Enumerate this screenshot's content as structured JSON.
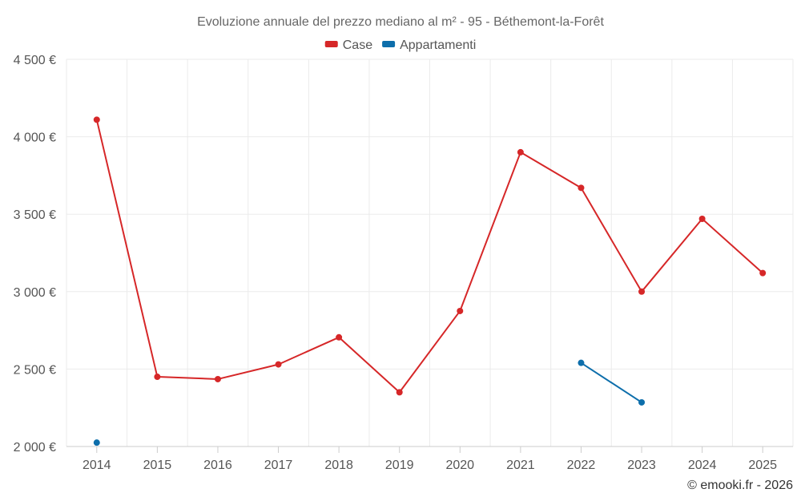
{
  "chart_data": {
    "type": "line",
    "title": "Evoluzione annuale del prezzo mediano al m² - 95 - Béthemont-la-Forêt",
    "categories": [
      "2014",
      "2015",
      "2016",
      "2017",
      "2018",
      "2019",
      "2020",
      "2021",
      "2022",
      "2023",
      "2024",
      "2025"
    ],
    "ylim": [
      2000,
      4500
    ],
    "yticks": [
      2000,
      2500,
      3000,
      3500,
      4000,
      4500
    ],
    "ytick_labels": [
      "2 000 €",
      "2 500 €",
      "3 000 €",
      "3 500 €",
      "4 000 €",
      "4 500 €"
    ],
    "grid": true,
    "legend_position": "top-center",
    "series": [
      {
        "name": "Case",
        "color": "#d62728",
        "values": [
          4110,
          2450,
          2435,
          2530,
          2705,
          2350,
          2875,
          3900,
          3670,
          3000,
          3470,
          3120
        ]
      },
      {
        "name": "Appartamenti",
        "color": "#0d6eab",
        "values": [
          2025,
          null,
          null,
          null,
          null,
          null,
          null,
          null,
          2540,
          2285,
          null,
          null
        ]
      }
    ],
    "credit": "© emooki.fr - 2026"
  }
}
